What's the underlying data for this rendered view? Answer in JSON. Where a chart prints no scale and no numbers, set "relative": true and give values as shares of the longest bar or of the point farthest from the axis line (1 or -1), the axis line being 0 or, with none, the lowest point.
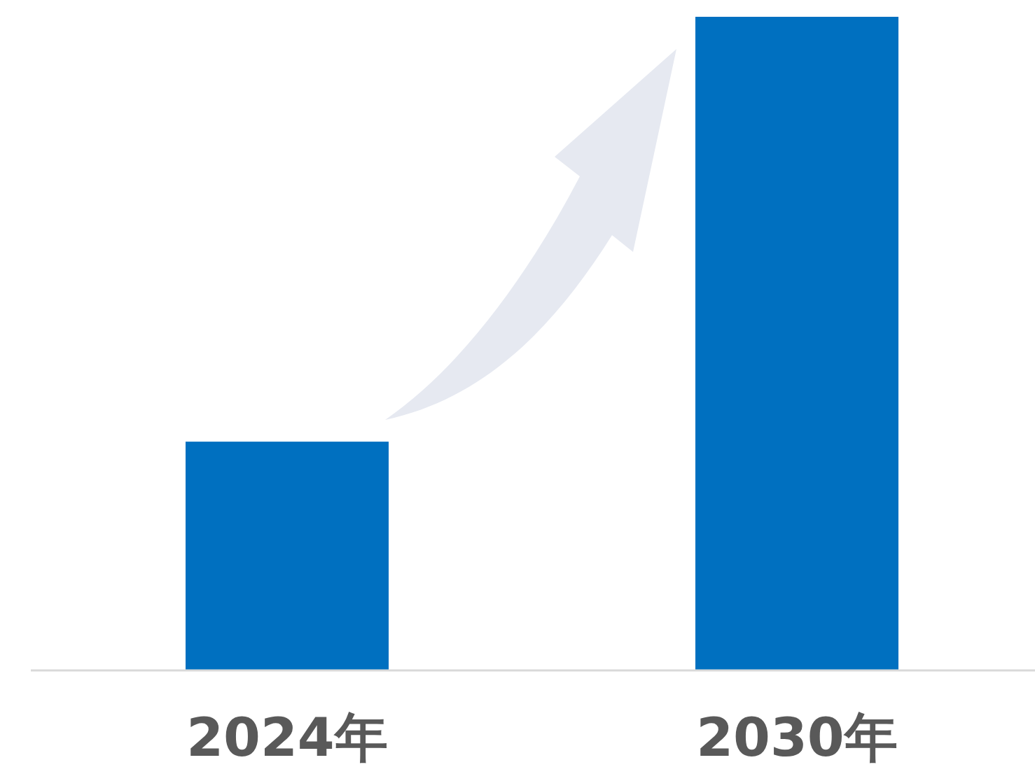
{
  "chart_data": {
    "type": "bar",
    "relative": true,
    "categories": [
      "2024年",
      "2030年"
    ],
    "values": [
      0.35,
      1
    ],
    "color": "#0070c0"
  }
}
